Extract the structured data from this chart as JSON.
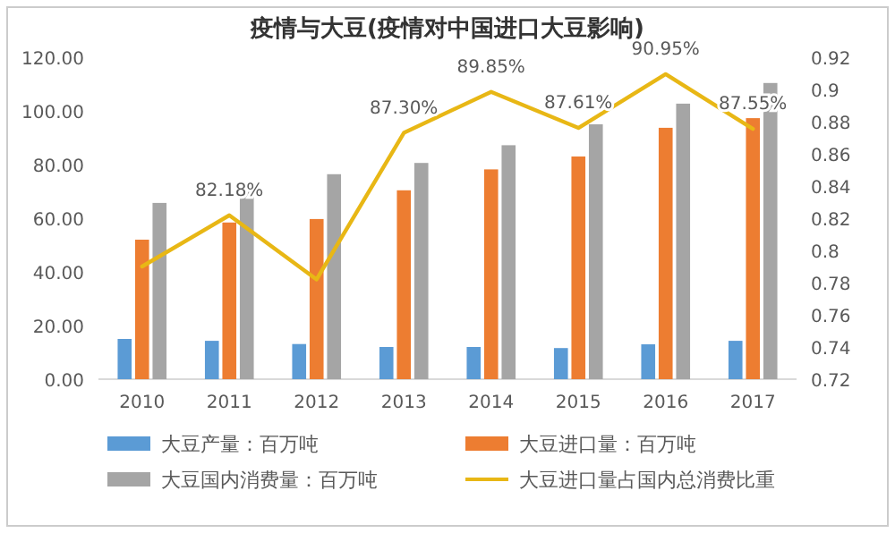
{
  "chart_data": {
    "type": "bar",
    "title": "疫情与大豆(疫情对中国进口大豆影响)",
    "categories": [
      "2010",
      "2011",
      "2012",
      "2013",
      "2014",
      "2015",
      "2016",
      "2017"
    ],
    "series": [
      {
        "name": "大豆产量：百万吨",
        "color": "#5b9bd5",
        "values": [
          15,
          14.3,
          13.1,
          12,
          12,
          11.6,
          13,
          14.3
        ]
      },
      {
        "name": "大豆进口量：百万吨",
        "color": "#ed7d31",
        "values": [
          52,
          58.4,
          59.7,
          70.4,
          78.2,
          83,
          93.7,
          97.3
        ]
      },
      {
        "name": "大豆国内消费量：百万吨",
        "color": "#a5a5a5",
        "values": [
          65.7,
          71,
          76.4,
          80.6,
          87.2,
          95,
          102.7,
          110.4
        ]
      },
      {
        "name": "大豆进口量占国内总消费比重",
        "type": "line",
        "axis": "y2",
        "color": "#e8b715",
        "values": [
          0.79,
          0.8218,
          0.782,
          0.873,
          0.8985,
          0.8761,
          0.9095,
          0.8755
        ],
        "value_labels": [
          null,
          "82.18%",
          null,
          "87.30%",
          "89.85%",
          "87.61%",
          "90.95%",
          "87.55%"
        ]
      }
    ],
    "ylim": [
      0,
      120
    ],
    "yticks": [
      {
        "value": 0,
        "label": "0.00"
      },
      {
        "value": 20,
        "label": "20.00"
      },
      {
        "value": 40,
        "label": "40.00"
      },
      {
        "value": 60,
        "label": "60.00"
      },
      {
        "value": 80,
        "label": "80.00"
      },
      {
        "value": 100,
        "label": "100.00"
      },
      {
        "value": 120,
        "label": "120.00"
      }
    ],
    "y2lim": [
      0.72,
      0.92
    ],
    "y2ticks": [
      0.72,
      0.74,
      0.76,
      0.78,
      0.8,
      0.82,
      0.84,
      0.86,
      0.88,
      0.9,
      0.92
    ],
    "legend": "bottom"
  }
}
